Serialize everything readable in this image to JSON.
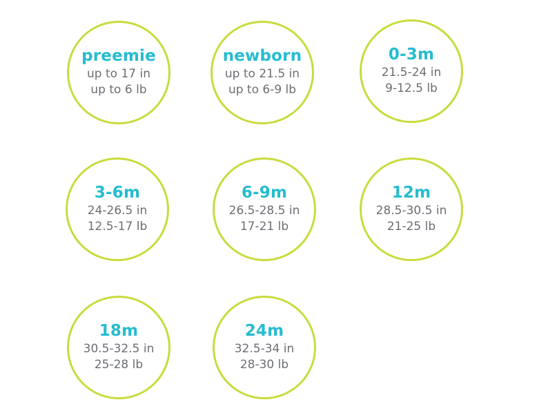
{
  "sizes": [
    {
      "label": "preemie",
      "length": "up to 17 in",
      "weight": "up to 6 lb"
    },
    {
      "label": "newborn",
      "length": "up to 21.5 in",
      "weight": "up to 6-9 lb"
    },
    {
      "label": "0-3m",
      "length": "21.5-24 in",
      "weight": "9-12.5 lb"
    },
    {
      "label": "3-6m",
      "length": "24-26.5 in",
      "weight": "12.5-17 lb"
    },
    {
      "label": "6-9m",
      "length": "26.5-28.5 in",
      "weight": "17-21 lb"
    },
    {
      "label": "12m",
      "length": "28.5-30.5 in",
      "weight": "21-25 lb"
    },
    {
      "label": "18m",
      "length": "30.5-32.5 in",
      "weight": "25-28 lb"
    },
    {
      "label": "24m",
      "length": "32.5-34 in",
      "weight": "28-30 lb"
    }
  ],
  "colors": {
    "circle_border": "#c9db3c",
    "label_text": "#26bcd0",
    "detail_text": "#6b6e73",
    "background": "#ffffff"
  }
}
